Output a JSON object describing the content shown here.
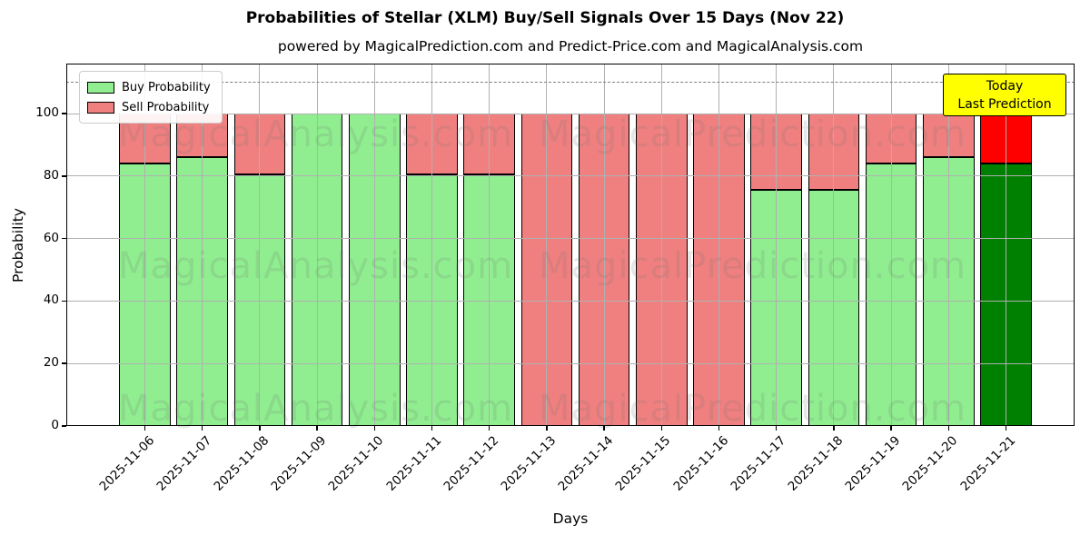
{
  "title": "Probabilities of Stellar (XLM) Buy/Sell Signals Over 15 Days (Nov 22)",
  "subtitle": "powered by MagicalPrediction.com and Predict-Price.com and MagicalAnalysis.com",
  "legend": {
    "items": [
      {
        "label": "Buy Probability",
        "color": "#90EE90"
      },
      {
        "label": "Sell Probability",
        "color": "#F08080"
      }
    ]
  },
  "annotation": {
    "line1": "Today",
    "line2": "Last Prediction",
    "bg_color": "#FFFF00",
    "border_color": "#000000"
  },
  "watermarks": {
    "left_text": "MagicalAnalysis.com",
    "right_text": "MagicalPrediction.com"
  },
  "chart_data": {
    "type": "bar",
    "stacked": true,
    "title": "Probabilities of Stellar (XLM) Buy/Sell Signals Over 15 Days (Nov 22)",
    "xlabel": "Days",
    "ylabel": "Probability",
    "categories": [
      "2025-11-06",
      "2025-11-07",
      "2025-11-08",
      "2025-11-09",
      "2025-11-10",
      "2025-11-11",
      "2025-11-12",
      "2025-11-13",
      "2025-11-14",
      "2025-11-15",
      "2025-11-16",
      "2025-11-17",
      "2025-11-18",
      "2025-11-19",
      "2025-11-20",
      "2025-11-21"
    ],
    "series": [
      {
        "name": "Buy Probability",
        "color": "#90EE90",
        "final_bar_color": "#008000",
        "values": [
          84,
          86,
          80.5,
          100,
          100,
          80.5,
          80.5,
          0,
          0,
          0,
          0,
          75.5,
          75.5,
          84,
          86,
          84
        ]
      },
      {
        "name": "Sell Probability",
        "color": "#F08080",
        "final_bar_color": "#FF0000",
        "values": [
          16,
          14,
          19.5,
          0,
          0,
          19.5,
          19.5,
          100,
          100,
          100,
          100,
          24.5,
          24.5,
          16,
          14,
          16
        ]
      }
    ],
    "yticks": [
      0,
      20,
      40,
      60,
      80,
      100
    ],
    "ylim": [
      0,
      116
    ],
    "reference_line": {
      "y": 110,
      "style": "dashed",
      "color": "#7f7f7f"
    },
    "grid": true,
    "grid_color": "#b0b0b0",
    "bar_edge_color": "#000000",
    "legend_position": "upper left"
  }
}
